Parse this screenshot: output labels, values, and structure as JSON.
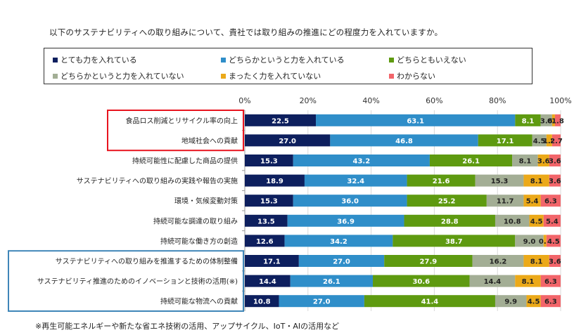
{
  "question": "以下のサステナビリティへの取り組みについて、貴社では取り組みの推進にどの程度力を入れていますか。",
  "footnote": "※再生可能エネルギーや新たな省エネ技術の活用、アップサイクル、IoT・AIの活用など",
  "chart_data": {
    "type": "bar",
    "orientation": "horizontal",
    "stacked": true,
    "percent_stacked": true,
    "xlim": [
      0,
      100
    ],
    "x_ticks": [
      "0%",
      "20%",
      "40%",
      "60%",
      "80%",
      "100%"
    ],
    "grid": true,
    "legend_position": "top",
    "categories": [
      "食品ロス削減とリサイクル率の向上",
      "地域社会への貢献",
      "持続可能性に配慮した商品の提供",
      "サステナビリティへの取り組みの実践や報告の実施",
      "環境・気候変動対策",
      "持続可能な調達の取り組み",
      "持続可能な働き方の創造",
      "サステナビリティへの取り組みを推進するための体制整備",
      "サステナビリティ推進のためのイノベーションと技術の活用(※)",
      "持続可能な物流への貢献"
    ],
    "series": [
      {
        "name": "とても力を入れている",
        "color": "#0d1f5e",
        "values": [
          22.5,
          27.0,
          15.3,
          18.9,
          15.3,
          13.5,
          12.6,
          17.1,
          14.4,
          10.8
        ],
        "labels": [
          "22.5",
          "27.0",
          "15.3",
          "18.9",
          "15.3",
          "13.5",
          "12.6",
          "17.1",
          "14.4",
          "10.8"
        ]
      },
      {
        "name": "どちらかというと力を入れている",
        "color": "#2f8ec9",
        "values": [
          63.1,
          46.8,
          43.2,
          32.4,
          36.0,
          36.9,
          34.2,
          27.0,
          26.1,
          27.0
        ],
        "labels": [
          "63.1",
          "46.8",
          "43.2",
          "32.4",
          "36.0",
          "36.9",
          "34.2",
          "27.0",
          "26.1",
          "27.0"
        ]
      },
      {
        "name": "どちらともいえない",
        "color": "#5e9a10",
        "values": [
          8.1,
          17.1,
          26.1,
          21.6,
          25.2,
          28.8,
          38.7,
          27.9,
          30.6,
          41.4
        ],
        "labels": [
          "8.1",
          "17.1",
          "26.1",
          "21.6",
          "25.2",
          "28.8",
          "38.7",
          "27.9",
          "30.6",
          "41.4"
        ]
      },
      {
        "name": "どちらかというと力を入れていない",
        "color": "#a3ae95",
        "values": [
          3.6,
          4.5,
          8.1,
          15.3,
          11.7,
          10.8,
          9.0,
          16.2,
          14.4,
          9.9
        ],
        "labels": [
          "3.6",
          "4.5",
          "8.1",
          "15.3",
          "11.7",
          "10.8",
          "9.0",
          "16.2",
          "14.4",
          "9.9"
        ]
      },
      {
        "name": "まったく力を入れていない",
        "color": "#eba919",
        "values": [
          0.9,
          1.8,
          3.6,
          8.1,
          5.4,
          4.5,
          0.9,
          8.1,
          8.1,
          4.5
        ],
        "labels": [
          "0.9",
          "1.8",
          "3.6",
          "8.1",
          "5.4",
          "4.5",
          "0.9",
          "8.1",
          "8.1",
          "4.5"
        ]
      },
      {
        "name": "わからない",
        "color": "#f2656a",
        "values": [
          1.8,
          2.7,
          3.6,
          3.6,
          6.3,
          5.4,
          4.5,
          3.6,
          6.3,
          6.3
        ],
        "labels": [
          "1.8",
          "2.7",
          "3.6",
          "3.6",
          "6.3",
          "5.4",
          "4.5",
          "3.6",
          "6.3",
          "6.3"
        ]
      }
    ],
    "highlight_groups": [
      {
        "color": "#e8141e",
        "categories": [
          "食品ロス削減とリサイクル率の向上",
          "地域社会への貢献"
        ]
      },
      {
        "color": "#3f86b8",
        "categories": [
          "サステナビリティへの取り組みを推進するための体制整備",
          "サステナビリティ推進のためのイノベーションと技術の活用(※)",
          "持続可能な物流への貢献"
        ]
      }
    ]
  }
}
